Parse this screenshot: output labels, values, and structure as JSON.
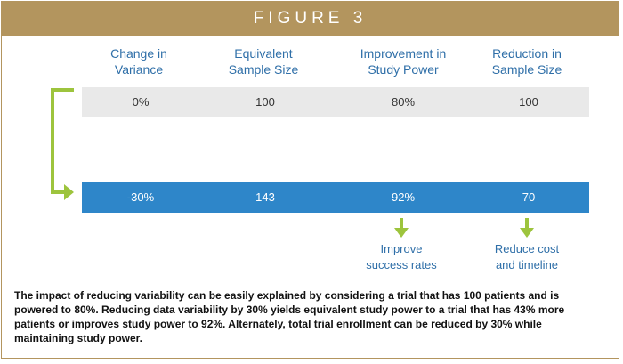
{
  "header": {
    "title": "FIGURE 3"
  },
  "columns": [
    {
      "line1": "Change in",
      "line2": "Variance"
    },
    {
      "line1": "Equivalent",
      "line2": "Sample Size"
    },
    {
      "line1": "Improvement in",
      "line2": "Study Power"
    },
    {
      "line1": "Reduction in",
      "line2": "Sample Size"
    }
  ],
  "rows": {
    "baseline": [
      "0%",
      "100",
      "80%",
      "100"
    ],
    "reduced": [
      "-30%",
      "143",
      "92%",
      "70"
    ]
  },
  "notes": [
    {
      "line1": "Improve",
      "line2": "success rates"
    },
    {
      "line1": "Reduce cost",
      "line2": "and timeline"
    }
  ],
  "caption": "The impact of reducing variability can be easily explained by considering a trial that has 100 patients and is powered to 80%. Reducing data variability by 30% yields equivalent study power to a trial that has 43% more patients or improves study power to 92%. Alternately, total trial enrollment can be reduced by 30% while maintaining study power.",
  "colors": {
    "header": "#b3955e",
    "accent_blue": "#2f6fa8",
    "reduced_row": "#2e86c9",
    "baseline_row": "#e9e9e9",
    "arrow_green": "#9dc43d"
  }
}
